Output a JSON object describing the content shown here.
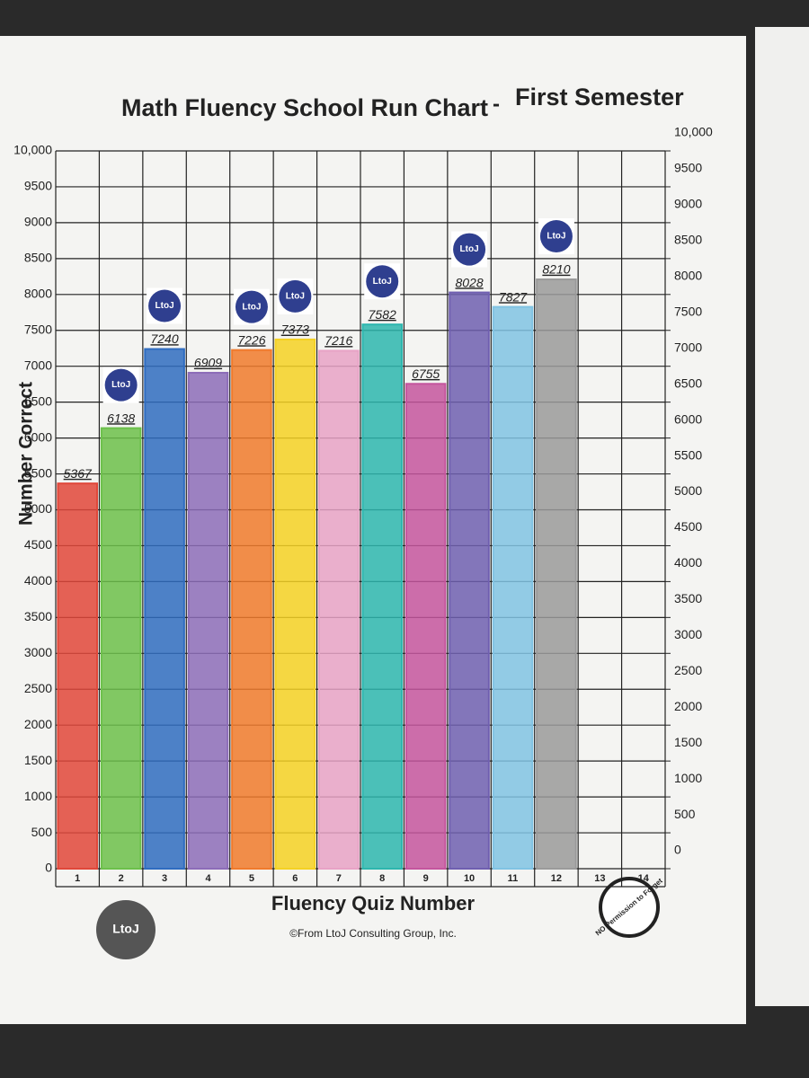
{
  "chart_data": {
    "type": "bar",
    "title": "Math Fluency School Run Chart",
    "subtitle": "First Semester",
    "x_label": "Fluency Quiz Number",
    "y_label": "Number Correct",
    "footer": "©From LtoJ Consulting Group, Inc.",
    "badge": "LtoJ",
    "stamp": "NO Permission to Forget",
    "categories": [
      "1",
      "2",
      "3",
      "4",
      "5",
      "6",
      "7",
      "8",
      "9",
      "10",
      "11",
      "12",
      "13",
      "14"
    ],
    "values": [
      5367,
      6138,
      7240,
      6909,
      7226,
      7373,
      7216,
      7582,
      6755,
      8028,
      7827,
      8210,
      null,
      null
    ],
    "colors": [
      "#e0473a",
      "#6cc04a",
      "#2f6cc0",
      "#8c6cb8",
      "#f07a2c",
      "#f4d123",
      "#e8a2c6",
      "#2db6ae",
      "#c4559e",
      "#6f5fb0",
      "#80c3e3",
      "#9a9a9a",
      "#ffffff",
      "#ffffff"
    ],
    "badged": [
      false,
      true,
      true,
      false,
      true,
      true,
      false,
      true,
      false,
      true,
      false,
      true,
      false,
      false
    ],
    "ylim": [
      0,
      10000
    ],
    "yticks": [
      0,
      500,
      1000,
      1500,
      2000,
      2500,
      3000,
      3500,
      4000,
      4500,
      5000,
      5500,
      6000,
      6500,
      7000,
      7500,
      8000,
      8500,
      9000,
      9500,
      {
        "value": 10000,
        "label": "10,000"
      }
    ],
    "y2lim": [
      0,
      10000
    ],
    "y2ticks": [
      0,
      500,
      1000,
      1500,
      2000,
      2500,
      3000,
      3500,
      4000,
      4500,
      5000,
      5500,
      6000,
      6500,
      7000,
      7500,
      8000,
      8500,
      9000,
      9500,
      {
        "value": 10000,
        "label": "10,000"
      }
    ],
    "grid": true
  }
}
